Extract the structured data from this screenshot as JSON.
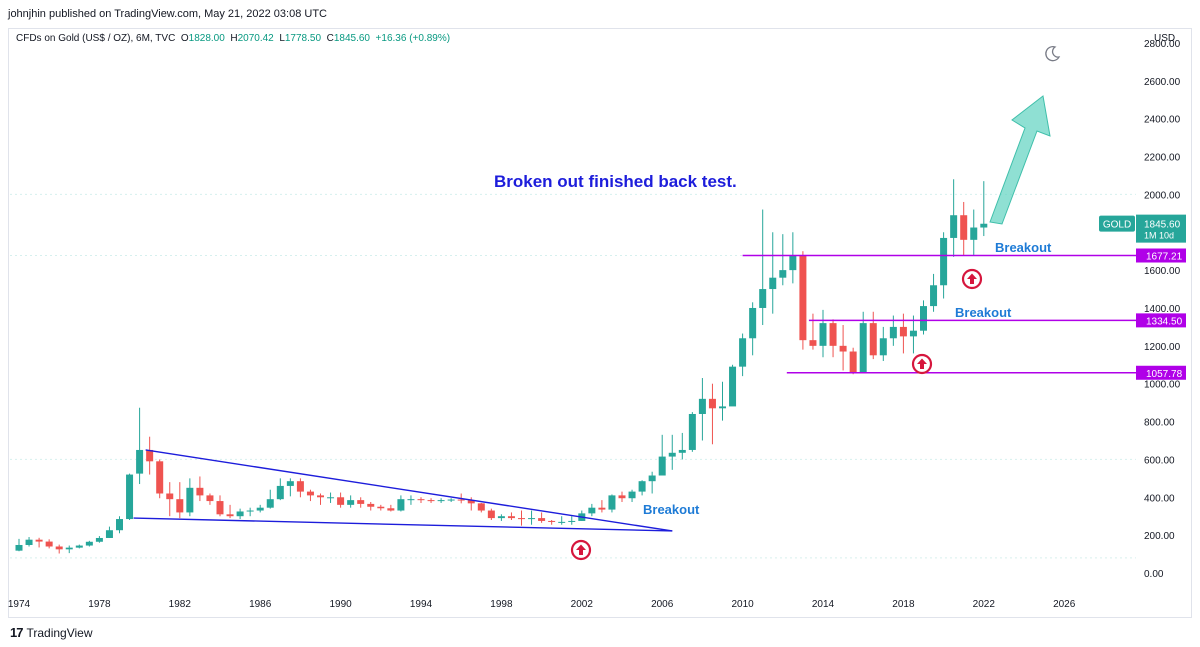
{
  "header": {
    "published": "johnjhin published on TradingView.com, May 21, 2022 03:08 UTC"
  },
  "symbol": {
    "name": "CFDs on Gold (US$ / OZ), 6M, TVC",
    "o_label": "O",
    "o_value": "1828.00",
    "h_label": "H",
    "h_value": "2070.42",
    "l_label": "L",
    "l_value": "1778.50",
    "c_label": "C",
    "c_value": "1845.60",
    "change": "+16.36 (+0.89%)"
  },
  "axis": {
    "currency": "USD",
    "price_ticks": [
      "2800.00",
      "2600.00",
      "2400.00",
      "2200.00",
      "2000.00",
      "1800.00",
      "1600.00",
      "1400.00",
      "1200.00",
      "1000.00",
      "800.00",
      "600.00",
      "400.00",
      "200.00",
      "0.00"
    ],
    "time_ticks": [
      "1974",
      "1978",
      "1982",
      "1986",
      "1990",
      "1994",
      "1998",
      "2002",
      "2006",
      "2010",
      "2014",
      "2018",
      "2022",
      "2026"
    ]
  },
  "badges": {
    "gold_label": "GOLD",
    "gold_price": "1845.60",
    "countdown": "1M 10d",
    "level1": "1677.21",
    "level2": "1334.50",
    "level3": "1057.78"
  },
  "annotations": {
    "headline": "Broken out finished back test.",
    "breakout": "Breakout"
  },
  "footer": {
    "brand": "TradingView",
    "logo": "17"
  },
  "colors": {
    "up": "#26a69a",
    "down": "#ef5350",
    "level": "#b000e8",
    "trend": "#1d1ddb",
    "arrow": "#5fd3c0",
    "text_blue": "#2962ff"
  },
  "chart_data": {
    "type": "candlestick",
    "title": "CFDs on Gold (US$ / OZ), 6M, TVC",
    "ylabel": "USD",
    "ylim": [
      0,
      2800
    ],
    "xlim": [
      1974,
      2028
    ],
    "x": [
      1974.0,
      1974.5,
      1975.0,
      1975.5,
      1976.0,
      1976.5,
      1977.0,
      1977.5,
      1978.0,
      1978.5,
      1979.0,
      1979.5,
      1980.0,
      1980.5,
      1981.0,
      1981.5,
      1982.0,
      1982.5,
      1983.0,
      1983.5,
      1984.0,
      1984.5,
      1985.0,
      1985.5,
      1986.0,
      1986.5,
      1987.0,
      1987.5,
      1988.0,
      1988.5,
      1989.0,
      1989.5,
      1990.0,
      1990.5,
      1991.0,
      1991.5,
      1992.0,
      1992.5,
      1993.0,
      1993.5,
      1994.0,
      1994.5,
      1995.0,
      1995.5,
      1996.0,
      1996.5,
      1997.0,
      1997.5,
      1998.0,
      1998.5,
      1999.0,
      1999.5,
      2000.0,
      2000.5,
      2001.0,
      2001.5,
      2002.0,
      2002.5,
      2003.0,
      2003.5,
      2004.0,
      2004.5,
      2005.0,
      2005.5,
      2006.0,
      2006.5,
      2007.0,
      2007.5,
      2008.0,
      2008.5,
      2009.0,
      2009.5,
      2010.0,
      2010.5,
      2011.0,
      2011.5,
      2012.0,
      2012.5,
      2013.0,
      2013.5,
      2014.0,
      2014.5,
      2015.0,
      2015.5,
      2016.0,
      2016.5,
      2017.0,
      2017.5,
      2018.0,
      2018.5,
      2019.0,
      2019.5,
      2020.0,
      2020.5,
      2021.0,
      2021.5,
      2022.0
    ],
    "open": [
      118,
      148,
      176,
      166,
      140,
      125,
      134,
      145,
      165,
      185,
      226,
      285,
      525,
      650,
      590,
      420,
      390,
      320,
      450,
      410,
      380,
      310,
      300,
      325,
      330,
      345,
      390,
      460,
      485,
      430,
      410,
      400,
      400,
      360,
      385,
      365,
      350,
      342,
      330,
      390,
      390,
      385,
      383,
      385,
      388,
      385,
      368,
      330,
      290,
      300,
      290,
      285,
      290,
      275,
      270,
      270,
      275,
      315,
      345,
      335,
      410,
      395,
      430,
      485,
      515,
      615,
      635,
      650,
      840,
      920,
      870,
      880,
      1090,
      1240,
      1400,
      1500,
      1560,
      1600,
      1680,
      1230,
      1200,
      1320,
      1200,
      1170,
      1060,
      1320,
      1150,
      1240,
      1300,
      1250,
      1280,
      1410,
      1520,
      1770,
      1890,
      1760,
      1825
    ],
    "high": [
      180,
      190,
      186,
      178,
      150,
      145,
      150,
      170,
      195,
      245,
      300,
      525,
      873,
      720,
      600,
      480,
      480,
      500,
      510,
      420,
      410,
      360,
      340,
      345,
      360,
      440,
      500,
      500,
      500,
      440,
      420,
      425,
      425,
      410,
      400,
      375,
      360,
      360,
      410,
      410,
      400,
      395,
      395,
      395,
      420,
      400,
      370,
      340,
      310,
      320,
      330,
      330,
      320,
      280,
      300,
      300,
      330,
      365,
      385,
      415,
      430,
      440,
      490,
      535,
      730,
      730,
      740,
      850,
      1030,
      1000,
      1010,
      1100,
      1265,
      1430,
      1920,
      1800,
      1790,
      1800,
      1700,
      1370,
      1390,
      1340,
      1310,
      1190,
      1380,
      1380,
      1300,
      1360,
      1370,
      1360,
      1440,
      1580,
      1800,
      2080,
      1960,
      1920,
      2070
    ],
    "low": [
      115,
      140,
      135,
      130,
      103,
      105,
      130,
      140,
      160,
      185,
      210,
      280,
      470,
      520,
      395,
      300,
      290,
      300,
      380,
      360,
      300,
      290,
      285,
      300,
      320,
      340,
      385,
      405,
      400,
      380,
      360,
      370,
      345,
      345,
      345,
      330,
      330,
      325,
      325,
      360,
      370,
      370,
      370,
      375,
      368,
      330,
      320,
      280,
      275,
      280,
      250,
      255,
      265,
      255,
      255,
      255,
      275,
      300,
      320,
      320,
      375,
      375,
      410,
      420,
      520,
      545,
      600,
      640,
      700,
      680,
      805,
      900,
      1040,
      1150,
      1310,
      1370,
      1520,
      1530,
      1180,
      1180,
      1140,
      1140,
      1070,
      1050,
      1060,
      1130,
      1120,
      1200,
      1160,
      1160,
      1260,
      1380,
      1450,
      1670,
      1680,
      1680,
      1780
    ],
    "close": [
      148,
      176,
      166,
      140,
      125,
      134,
      145,
      165,
      185,
      226,
      285,
      520,
      650,
      590,
      420,
      390,
      320,
      450,
      410,
      380,
      310,
      300,
      325,
      330,
      345,
      390,
      460,
      485,
      430,
      410,
      400,
      400,
      360,
      385,
      365,
      350,
      342,
      330,
      390,
      390,
      385,
      383,
      385,
      388,
      385,
      368,
      330,
      290,
      300,
      290,
      285,
      290,
      275,
      270,
      270,
      275,
      315,
      345,
      335,
      410,
      395,
      430,
      485,
      515,
      615,
      635,
      650,
      840,
      920,
      870,
      880,
      1090,
      1240,
      1400,
      1500,
      1560,
      1600,
      1680,
      1230,
      1200,
      1320,
      1200,
      1170,
      1060,
      1320,
      1150,
      1240,
      1300,
      1250,
      1280,
      1410,
      1520,
      1770,
      1890,
      1760,
      1825,
      1845
    ],
    "annotations": [
      "Broken out finished back test.",
      "Breakout",
      "Breakout",
      "Breakout"
    ],
    "horizontal_levels": [
      1677.21,
      1334.5,
      1057.78
    ]
  }
}
